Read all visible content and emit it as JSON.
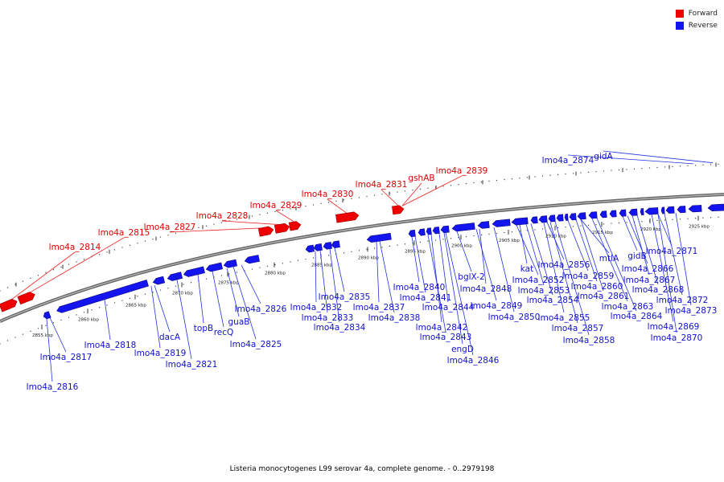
{
  "caption": "Listeria monocytogenes L99 serovar 4a, complete genome. - 0..2979198",
  "legend": {
    "forward": {
      "label": "Forward",
      "color": "#ee0000"
    },
    "reverse": {
      "label": "Reverse",
      "color": "#1414ee"
    }
  },
  "scale_ticks": [
    "2855 kbp",
    "2860 kbp",
    "2865 kbp",
    "2870 kbp",
    "2875 kbp",
    "2880 kbp",
    "2885 kbp",
    "2890 kbp",
    "2895 kbp",
    "2900 kbp",
    "2905 kbp",
    "2910 kbp",
    "2915 kbp",
    "2920 kbp",
    "2925 kbp"
  ],
  "forward_genes": [
    "lmo4a_2814",
    "lmo4a_2815",
    "lmo4a_2827",
    "lmo4a_2828",
    "lmo4a_2829",
    "lmo4a_2830",
    "lmo4a_2831",
    "gshAB",
    "lmo4a_2839"
  ],
  "reverse_genes": [
    "lmo4a_2816",
    "lmo4a_2817",
    "lmo4a_2818",
    "dacA",
    "lmo4a_2819",
    "lmo4a_2821",
    "topB",
    "recQ",
    "guaB",
    "lmo4a_2825",
    "lmo4a_2826",
    "lmo4a_2832",
    "lmo4a_2833",
    "lmo4a_2834",
    "lmo4a_2835",
    "lmo4a_2837",
    "lmo4a_2838",
    "lmo4a_2840",
    "lmo4a_2841",
    "lmo4a_2842",
    "lmo4a_2843",
    "lmo4a_2844",
    "engD",
    "lmo4a_2846",
    "bglX-2",
    "lmo4a_2848",
    "lmo4a_2849",
    "lmo4a_2850",
    "kat",
    "lmo4a_2852",
    "lmo4a_2853",
    "lmo4a_2854",
    "lmo4a_2855",
    "lmo4a_2856",
    "lmo4a_2857",
    "lmo4a_2858",
    "lmo4a_2859",
    "mtlA",
    "lmo4a_2860",
    "lmo4a_2861",
    "lmo4a_2863",
    "lmo4a_2864",
    "gidB",
    "lmo4a_2866",
    "lmo4a_2867",
    "lmo4a_2868",
    "lmo4a_2869",
    "lmo4a_2870",
    "lmo4a_2871",
    "lmo4a_2872",
    "lmo4a_2873",
    "lmo4a_2874",
    "gidA"
  ]
}
